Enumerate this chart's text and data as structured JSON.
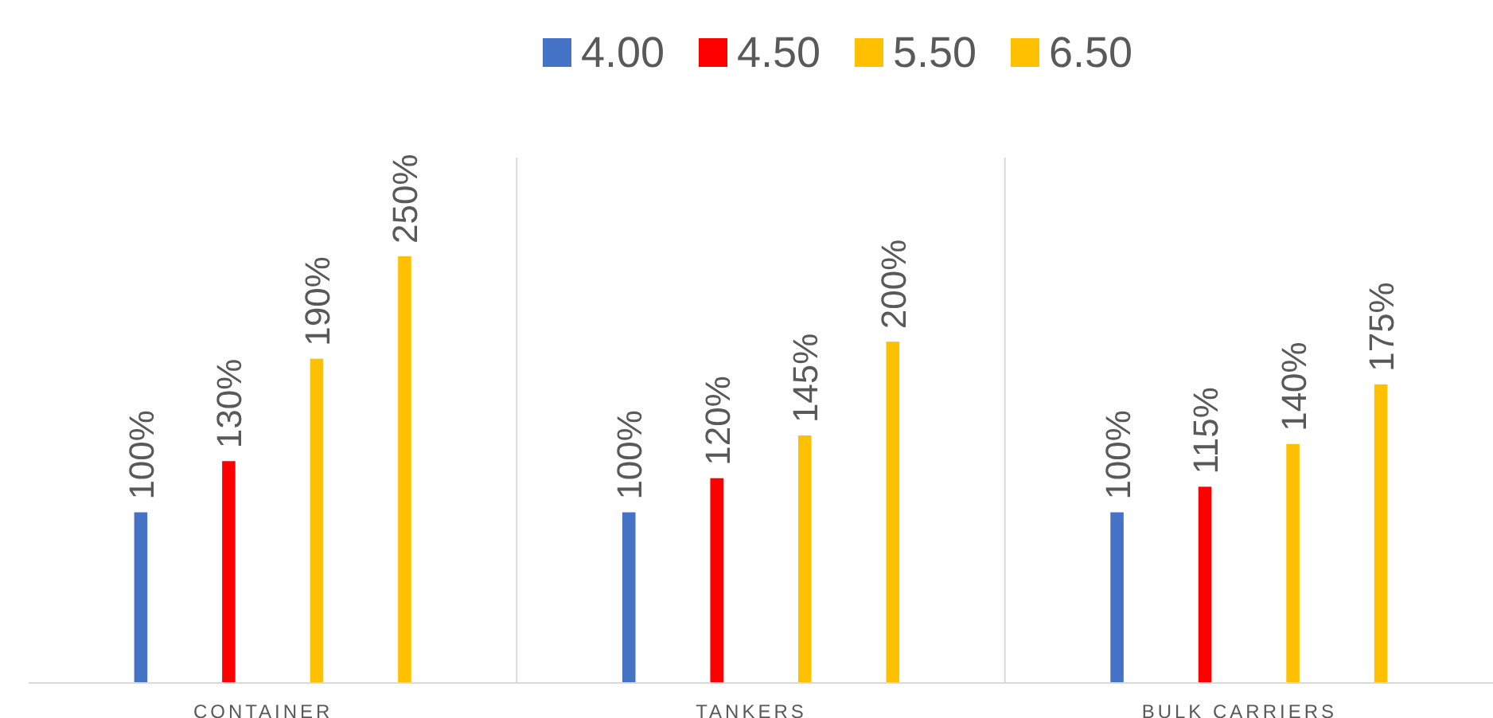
{
  "chart_data": {
    "type": "bar",
    "categories": [
      "CONTAINER",
      "TANKERS",
      "BULK CARRIERS"
    ],
    "legend": "top",
    "series": [
      {
        "name": "4.00",
        "color": "#4472c4",
        "values": [
          100,
          100,
          100
        ],
        "value_labels": [
          "100%",
          "100%",
          "100%"
        ]
      },
      {
        "name": "4.50",
        "color": "#ff0000",
        "values": [
          130,
          120,
          115
        ],
        "value_labels": [
          "130%",
          "120%",
          "115%"
        ]
      },
      {
        "name": "5.50",
        "color": "#ffc000",
        "values": [
          190,
          145,
          140
        ],
        "value_labels": [
          "190%",
          "145%",
          "140%"
        ]
      },
      {
        "name": "6.50",
        "color": "#ffc000",
        "values": [
          250,
          200,
          175
        ],
        "value_labels": [
          "250%",
          "200%",
          "175%"
        ]
      }
    ]
  }
}
